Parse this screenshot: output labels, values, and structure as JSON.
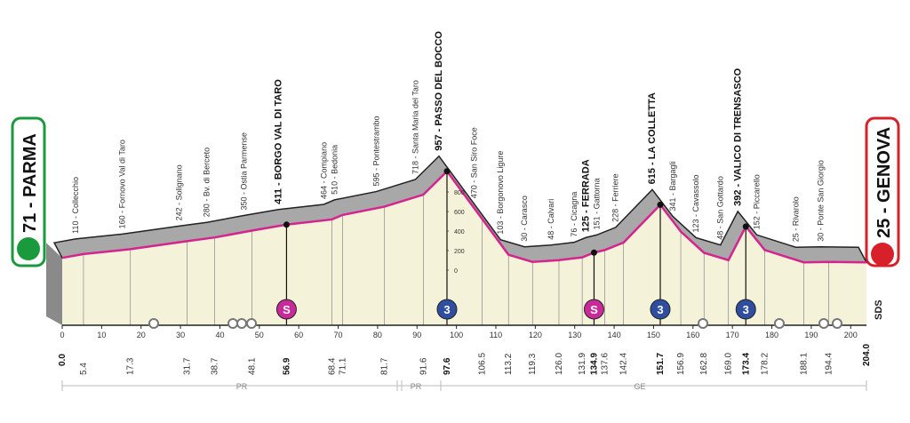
{
  "chart_data": {
    "type": "profile",
    "start": {
      "label": "71 - PARMA",
      "altitude": 71,
      "km": {
        "value": 0,
        "label": "0.0"
      }
    },
    "finish": {
      "label": "25 - GENOVA",
      "altitude": 25,
      "km": {
        "value": 204,
        "label": "204.0"
      }
    },
    "waypoints": [
      {
        "label": "110 - Collecchio",
        "altitude": 110,
        "km": 5.4
      },
      {
        "label": "160 - Fornovo Val di Taro",
        "altitude": 160,
        "km": 17.3
      },
      {
        "label": "242 - Solignano",
        "altitude": 242,
        "km": 31.7
      },
      {
        "label": "280 - Bv. di Berceto",
        "altitude": 280,
        "km": 38.7
      },
      {
        "label": "350 - Ostia Parmense",
        "altitude": 350,
        "km": 48.1
      },
      {
        "label": "411 - BORGO VAL DI TARO",
        "altitude": 411,
        "km": 56.9,
        "badge": "S"
      },
      {
        "label": "464 - Compiano",
        "altitude": 464,
        "km": 68.4
      },
      {
        "label": "510 - Bedonia",
        "altitude": 510,
        "km": 71.1
      },
      {
        "label": "595 - Pontestrambo",
        "altitude": 595,
        "km": 81.7
      },
      {
        "label": "718 - Santa Maria del Taro",
        "altitude": 718,
        "km": 91.6
      },
      {
        "label": "957 - PASSO DEL BOCCO",
        "altitude": 957,
        "km": 97.6,
        "badge": "3"
      },
      {
        "label": "470 - San Siro Foce",
        "altitude": 470,
        "km": 106.5
      },
      {
        "label": "103 - Borgonovo Ligure",
        "altitude": 103,
        "km": 113.2
      },
      {
        "label": "30 - Carasco",
        "altitude": 30,
        "km": 119.3
      },
      {
        "label": "48 - Calvari",
        "altitude": 48,
        "km": {
          "value": 126,
          "label": "126.0"
        }
      },
      {
        "label": "76 - Cicagna",
        "altitude": 76,
        "km": 131.9
      },
      {
        "label": "125 - FERRADA",
        "altitude": 125,
        "km": 134.9,
        "badge": "S"
      },
      {
        "label": "151 - Gattorna",
        "altitude": 151,
        "km": 137.6
      },
      {
        "label": "228 - Ferriere",
        "altitude": 228,
        "km": 142.4
      },
      {
        "label": "615 - LA COLLETTA",
        "altitude": 615,
        "km": 151.7,
        "badge": "3"
      },
      {
        "label": "341 - Bargagli",
        "altitude": 341,
        "km": 156.9
      },
      {
        "label": "123 - Cavassolo",
        "altitude": 123,
        "km": 162.8
      },
      {
        "label": "48 - San Gottardo",
        "altitude": 48,
        "km": {
          "value": 169,
          "label": "169.0"
        }
      },
      {
        "label": "392 - VALICO DI TRENSASCO",
        "altitude": 392,
        "km": 173.4,
        "badge": "3"
      },
      {
        "label": "152 - Piccarello",
        "altitude": 152,
        "km": 178.2
      },
      {
        "label": "25 - Rivarolo",
        "altitude": 25,
        "km": 188.1
      },
      {
        "label": "30 - Ponte San Giorgio",
        "altitude": 30,
        "km": 194.4
      }
    ],
    "xlim": [
      0,
      204
    ],
    "xticks": [
      0,
      10,
      20,
      30,
      40,
      50,
      60,
      70,
      80,
      90,
      100,
      110,
      120,
      130,
      140,
      150,
      160,
      170,
      180,
      190,
      200
    ],
    "ylim": [
      0,
      957
    ],
    "yticks": [
      0,
      200,
      400,
      600,
      800
    ],
    "regions": [
      "PR",
      "PR",
      "GE"
    ],
    "logo": "SDS",
    "line_color": "#d6248f",
    "fill_color": "#f4f3da",
    "shade_color": "#a8a8a8"
  }
}
